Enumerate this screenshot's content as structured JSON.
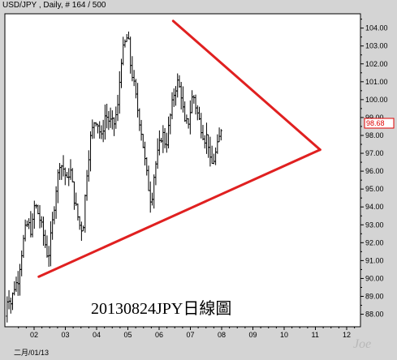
{
  "header": {
    "title": "USD/JPY , Daily, # 164 / 500"
  },
  "chart_data": {
    "type": "ohlc",
    "symbol": "USD/JPY",
    "timeframe": "Daily",
    "ylim": [
      87.3,
      104.8
    ],
    "y_ticks": [
      "88.00",
      "89.00",
      "90.00",
      "91.00",
      "92.00",
      "93.00",
      "94.00",
      "95.00",
      "96.00",
      "97.00",
      "98.00",
      "99.00",
      "100.00",
      "101.00",
      "102.00",
      "103.00",
      "104.00"
    ],
    "x_tick_labels": [
      "02",
      "03",
      "04",
      "05",
      "06",
      "07",
      "08",
      "09",
      "10",
      "11",
      "12"
    ],
    "x_start_label": "二月/01/13",
    "last_price": "98.68",
    "last_price_color": "#e00000",
    "trendlines": [
      {
        "name": "upper-resistance",
        "from": {
          "x": 5.45,
          "y": 104.4
        },
        "to": {
          "x": 10.15,
          "y": 97.2
        },
        "color": "#e02020"
      },
      {
        "name": "lower-support",
        "from": {
          "x": 1.15,
          "y": 90.1
        },
        "to": {
          "x": 10.15,
          "y": 97.2
        },
        "color": "#e02020"
      }
    ],
    "annotation": "20130824JPY日線圖",
    "watermark": "Joe",
    "price_path": [
      [
        0.0,
        85.6
      ],
      [
        0.08,
        87.9
      ],
      [
        0.16,
        89.2
      ],
      [
        0.26,
        88.6
      ],
      [
        0.36,
        89.5
      ],
      [
        0.48,
        89.9
      ],
      [
        0.58,
        91.2
      ],
      [
        0.7,
        92.6
      ],
      [
        0.8,
        93.1
      ],
      [
        0.92,
        92.6
      ],
      [
        1.02,
        94.2
      ],
      [
        1.1,
        93.8
      ],
      [
        1.2,
        93.2
      ],
      [
        1.3,
        92.4
      ],
      [
        1.45,
        91.1
      ],
      [
        1.58,
        93.0
      ],
      [
        1.7,
        95.0
      ],
      [
        1.82,
        96.5
      ],
      [
        1.95,
        96.1
      ],
      [
        2.05,
        95.4
      ],
      [
        2.15,
        96.2
      ],
      [
        2.28,
        94.5
      ],
      [
        2.45,
        93.0
      ],
      [
        2.56,
        92.7
      ],
      [
        2.68,
        95.8
      ],
      [
        2.8,
        97.8
      ],
      [
        2.95,
        99.0
      ],
      [
        3.05,
        98.6
      ],
      [
        3.15,
        97.8
      ],
      [
        3.28,
        99.2
      ],
      [
        3.4,
        98.8
      ],
      [
        3.55,
        98.6
      ],
      [
        3.68,
        99.6
      ],
      [
        3.78,
        102.2
      ],
      [
        3.88,
        103.0
      ],
      [
        4.0,
        103.6
      ],
      [
        4.08,
        102.0
      ],
      [
        4.18,
        101.0
      ],
      [
        4.3,
        99.6
      ],
      [
        4.45,
        98.0
      ],
      [
        4.55,
        96.5
      ],
      [
        4.65,
        95.2
      ],
      [
        4.75,
        94.2
      ],
      [
        4.85,
        96.0
      ],
      [
        4.98,
        97.2
      ],
      [
        5.1,
        98.2
      ],
      [
        5.22,
        97.4
      ],
      [
        5.35,
        99.0
      ],
      [
        5.48,
        100.4
      ],
      [
        5.58,
        101.0
      ],
      [
        5.7,
        100.4
      ],
      [
        5.82,
        98.6
      ],
      [
        5.95,
        98.8
      ],
      [
        6.08,
        100.4
      ],
      [
        6.2,
        99.4
      ],
      [
        6.32,
        98.6
      ],
      [
        6.45,
        97.8
      ],
      [
        6.55,
        98.0
      ],
      [
        6.65,
        96.2
      ],
      [
        6.78,
        96.8
      ],
      [
        6.9,
        97.6
      ],
      [
        7.0,
        98.6
      ]
    ]
  }
}
